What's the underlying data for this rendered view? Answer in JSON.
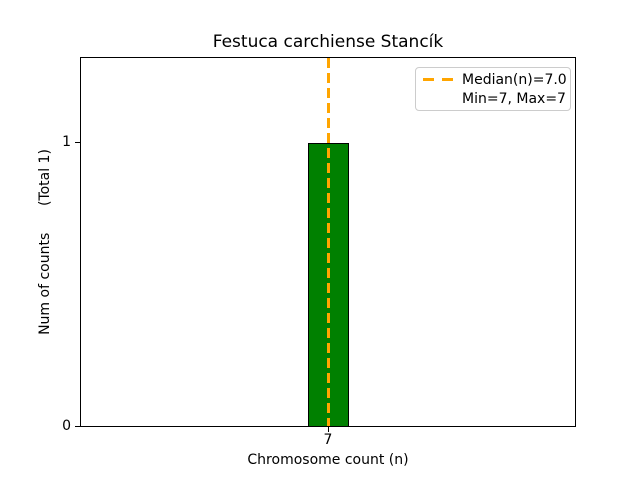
{
  "chart_data": {
    "type": "bar",
    "title": "Festuca carchiense Stancík",
    "xlabel": "Chromosome count (n)",
    "ylabel": "Num of counts      (Total 1)",
    "categories": [
      "7"
    ],
    "values": [
      1
    ],
    "total": 1,
    "xtick_labels": [
      "7"
    ],
    "ytick_labels": [
      "0",
      "1"
    ],
    "ylim": [
      0,
      1.3
    ],
    "grid": false,
    "bar_color": "#008000",
    "bar_edge_color": "#000000",
    "median_line": {
      "value": 7.0,
      "color": "#FFA500",
      "style": "dashed"
    },
    "stats": {
      "median": 7.0,
      "min": 7,
      "max": 7
    },
    "legend": {
      "position": "upper right",
      "entries": [
        {
          "label": "Median(n)=7.0",
          "marker": "dashed-line",
          "color": "#FFA500"
        },
        {
          "label": "Min=7, Max=7",
          "marker": "none"
        }
      ]
    }
  }
}
